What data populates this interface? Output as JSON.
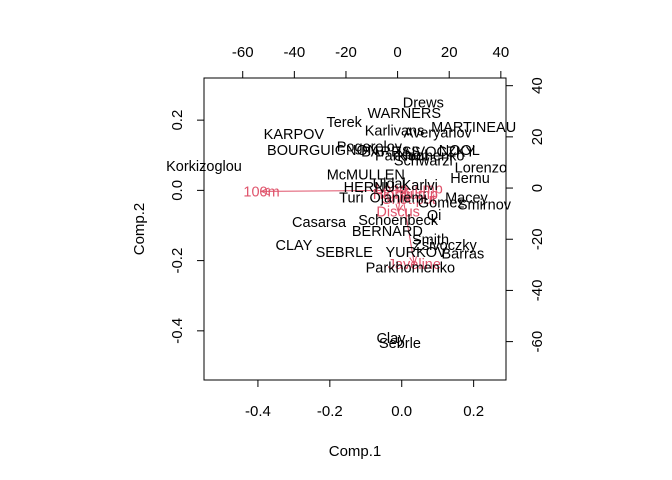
{
  "chart_data": {
    "type": "scatter",
    "title": "",
    "xlabel": "Comp.1",
    "ylabel": "Comp.2",
    "xlim": [
      -0.55,
      0.29
    ],
    "ylim": [
      -0.54,
      0.32
    ],
    "x_ticks": [
      -0.4,
      -0.2,
      0.0,
      0.2
    ],
    "x_tick_labels": [
      "-0.4",
      "-0.2",
      "0.0",
      "0.2"
    ],
    "y_ticks": [
      -0.4,
      -0.2,
      0.0,
      0.2
    ],
    "y_tick_labels": [
      "-0.4",
      "-0.2",
      "0.0",
      "0.2"
    ],
    "top_axis": {
      "range": [
        -75,
        42
      ],
      "ticks": [
        -60,
        -40,
        -20,
        0,
        20,
        40
      ],
      "labels": [
        "-60",
        "-40",
        "-20",
        "0",
        "20",
        "40"
      ]
    },
    "right_axis": {
      "range": [
        -75,
        43
      ],
      "ticks": [
        -60,
        -40,
        -20,
        0,
        20,
        40
      ],
      "labels": [
        "-60",
        "-40",
        "-20",
        "0",
        "20",
        "40"
      ],
      "color": "#DF536B"
    },
    "points": [
      {
        "label": "Drews",
        "x": 0.06,
        "y": 0.25
      },
      {
        "label": "WARNERS",
        "x": 0.007,
        "y": 0.22
      },
      {
        "label": "Terek",
        "x": -0.16,
        "y": 0.195
      },
      {
        "label": "Karlivans",
        "x": -0.02,
        "y": 0.17
      },
      {
        "label": "Averyanov",
        "x": 0.1,
        "y": 0.165
      },
      {
        "label": "MARTINEAU",
        "x": 0.2,
        "y": 0.18
      },
      {
        "label": "KARPOV",
        "x": -0.3,
        "y": 0.16
      },
      {
        "label": "Pogorelov",
        "x": -0.09,
        "y": 0.125
      },
      {
        "label": "BOURGUIGNON",
        "x": -0.22,
        "y": 0.115
      },
      {
        "label": "BARRAS",
        "x": -0.03,
        "y": 0.11
      },
      {
        "label": "ZSIVOCZKY",
        "x": 0.09,
        "y": 0.11
      },
      {
        "label": "NOOL",
        "x": 0.16,
        "y": 0.115
      },
      {
        "label": "Nool",
        "x": 0.03,
        "y": 0.1
      },
      {
        "label": "Schwarzl",
        "x": 0.06,
        "y": 0.085
      },
      {
        "label": "Lorenzo",
        "x": 0.22,
        "y": 0.065
      },
      {
        "label": "Hernu",
        "x": 0.19,
        "y": 0.035
      },
      {
        "label": "Parkhomenko",
        "x": 0.05,
        "y": 0.1
      },
      {
        "label": "McMULLEN",
        "x": -0.1,
        "y": 0.045
      },
      {
        "label": "HERNU",
        "x": -0.09,
        "y": 0.01
      },
      {
        "label": "Korkizoglou",
        "x": -0.55,
        "y": 0.07
      },
      {
        "label": "Uldal",
        "x": -0.035,
        "y": 0.02
      },
      {
        "label": "Karlvi",
        "x": 0.05,
        "y": 0.015
      },
      {
        "label": "Turi",
        "x": -0.14,
        "y": -0.02
      },
      {
        "label": "Macey",
        "x": 0.18,
        "y": -0.02
      },
      {
        "label": "Gomez",
        "x": 0.11,
        "y": -0.035
      },
      {
        "label": "Smirnov",
        "x": 0.23,
        "y": -0.04
      },
      {
        "label": "Ojaniemi",
        "x": -0.01,
        "y": -0.02
      },
      {
        "label": "Qi",
        "x": 0.09,
        "y": -0.07
      },
      {
        "label": "Casarsa",
        "x": -0.23,
        "y": -0.09
      },
      {
        "label": "Schoenbeck",
        "x": -0.01,
        "y": -0.085
      },
      {
        "label": "BERNARD",
        "x": -0.04,
        "y": -0.115
      },
      {
        "label": "Smith",
        "x": 0.08,
        "y": -0.14
      },
      {
        "label": "Zsivoczky",
        "x": 0.12,
        "y": -0.155
      },
      {
        "label": "CLAY",
        "x": -0.3,
        "y": -0.155
      },
      {
        "label": "SEBRLE",
        "x": -0.16,
        "y": -0.175
      },
      {
        "label": "YURKOV",
        "x": 0.04,
        "y": -0.175
      },
      {
        "label": "Barras",
        "x": 0.17,
        "y": -0.18
      },
      {
        "label": "Parkhomenko",
        "x": 0.024,
        "y": -0.22
      },
      {
        "label": "Clay",
        "x": -0.03,
        "y": -0.42
      },
      {
        "label": "Sebrle",
        "x": -0.005,
        "y": -0.435
      }
    ],
    "variables": [
      {
        "label": "100m",
        "x": -0.39,
        "y": -0.003
      },
      {
        "label": "Discus",
        "x": -0.01,
        "y": -0.06
      },
      {
        "label": "Javeline",
        "x": 0.035,
        "y": -0.21
      },
      {
        "label": "Shot.put",
        "x": 0.02,
        "y": -0.025
      },
      {
        "label": "Long.jump",
        "x": 0.02,
        "y": 0.005
      },
      {
        "label": "High.jump",
        "x": 0.01,
        "y": -0.01
      }
    ]
  },
  "colors": {
    "observations": "#000000",
    "variables": "#DF536B"
  }
}
